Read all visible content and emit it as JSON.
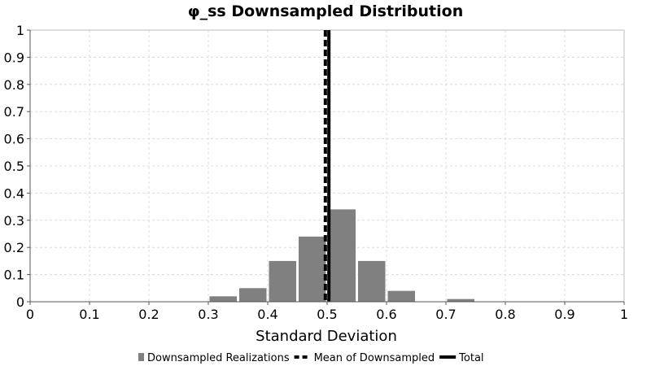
{
  "chart_data": {
    "type": "bar",
    "title": "φ_ss Downsampled Distribution",
    "xlabel": "Standard Deviation",
    "ylabel": "",
    "xlim": [
      0,
      1
    ],
    "ylim": [
      0,
      1
    ],
    "x_ticks": [
      "0",
      "0.1",
      "0.2",
      "0.3",
      "0.4",
      "0.5",
      "0.6",
      "0.7",
      "0.8",
      "0.9",
      "1"
    ],
    "y_ticks": [
      "0",
      "0.1",
      "0.2",
      "0.3",
      "0.4",
      "0.5",
      "0.6",
      "0.7",
      "0.8",
      "0.9",
      "1"
    ],
    "grid": true,
    "legend_position": "bottom",
    "series": [
      {
        "name": "Downsampled Realizations",
        "kind": "histogram",
        "color": "#808080",
        "bins": [
          {
            "x0": 0.3,
            "x1": 0.35,
            "value": 0.02
          },
          {
            "x0": 0.35,
            "x1": 0.4,
            "value": 0.05
          },
          {
            "x0": 0.4,
            "x1": 0.45,
            "value": 0.15
          },
          {
            "x0": 0.45,
            "x1": 0.5,
            "value": 0.24
          },
          {
            "x0": 0.5,
            "x1": 0.55,
            "value": 0.34
          },
          {
            "x0": 0.55,
            "x1": 0.6,
            "value": 0.15
          },
          {
            "x0": 0.6,
            "x1": 0.65,
            "value": 0.04
          },
          {
            "x0": 0.7,
            "x1": 0.75,
            "value": 0.01
          }
        ]
      },
      {
        "name": "Mean of Downsampled",
        "kind": "vline",
        "style": "dashed",
        "color": "#000000",
        "x": 0.497
      },
      {
        "name": "Total",
        "kind": "vline",
        "style": "solid",
        "color": "#000000",
        "x": 0.503
      }
    ]
  }
}
